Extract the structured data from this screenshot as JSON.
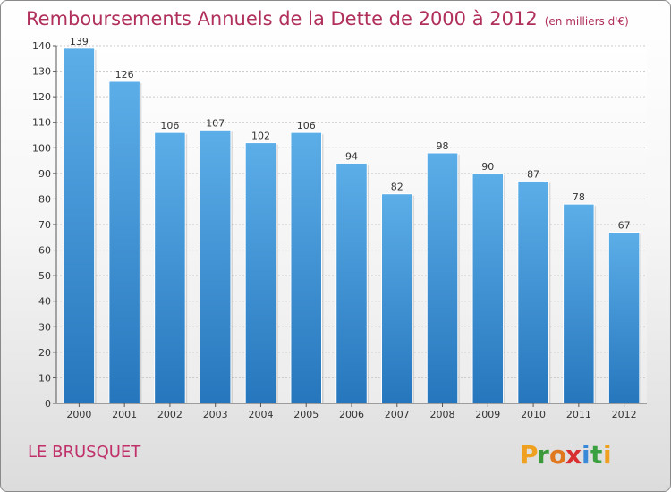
{
  "title": "Remboursements Annuels de la Dette de 2000 à 2012",
  "unit": "(en milliers d'€)",
  "commune": "LE BRUSQUET",
  "logo_text": "Proxiti",
  "colors": {
    "title": "#b0305a",
    "bar_top": "#5aaee8",
    "bar_bottom": "#2a78c0",
    "commune": "#c0306a"
  },
  "chart_data": {
    "type": "bar",
    "categories": [
      "2000",
      "2001",
      "2002",
      "2003",
      "2004",
      "2005",
      "2006",
      "2007",
      "2008",
      "2009",
      "2010",
      "2011",
      "2012"
    ],
    "values": [
      139,
      126,
      106,
      107,
      102,
      106,
      94,
      82,
      98,
      90,
      87,
      78,
      67
    ],
    "ylim": [
      0,
      140
    ],
    "yticks": [
      0,
      10,
      20,
      30,
      40,
      50,
      60,
      70,
      80,
      90,
      100,
      110,
      120,
      130,
      140
    ],
    "grid": true,
    "xlabel": "",
    "ylabel": ""
  }
}
